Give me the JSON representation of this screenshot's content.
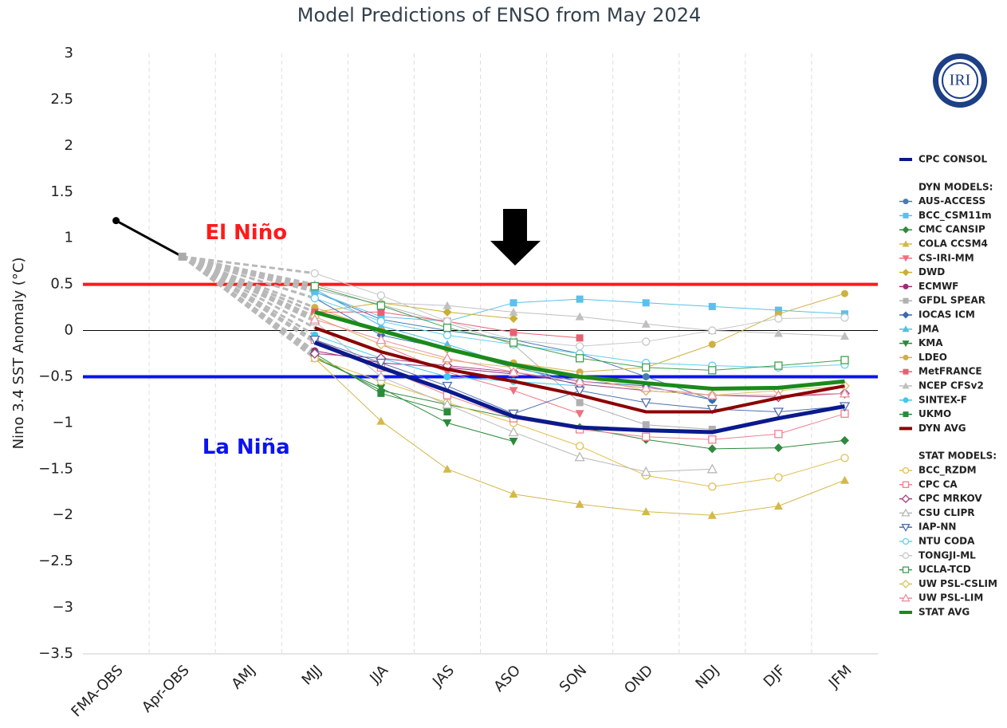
{
  "chart_data": {
    "type": "line",
    "title": "Model Predictions of ENSO from May 2024",
    "y_label": "Nino 3.4 SST Anomaly (°C)",
    "logo": "IRI",
    "categories": [
      "FMA-OBS",
      "Apr-OBS",
      "AMJ",
      "MJJ",
      "JJA",
      "JAS",
      "ASO",
      "SON",
      "OND",
      "NDJ",
      "DJF",
      "JFM"
    ],
    "ylim": [
      -3.5,
      3
    ],
    "yticks": [
      3,
      2.5,
      2,
      1.5,
      1,
      0.5,
      0,
      {
        "value": -0.5,
        "label": "−0.5"
      },
      {
        "value": -1,
        "label": "−1"
      },
      {
        "value": -1.5,
        "label": "−1.5"
      },
      {
        "value": -2,
        "label": "−2"
      },
      {
        "value": -2.5,
        "label": "−2.5"
      },
      {
        "value": -3,
        "label": "−3"
      },
      {
        "value": -3.5,
        "label": "−3.5"
      }
    ],
    "thresholds": [
      {
        "value": 0.5,
        "color": "#ff1a1a"
      },
      {
        "value": -0.5,
        "color": "#0a14f0"
      }
    ],
    "annotations": [
      {
        "text": "El Niño",
        "color": "#ff1a1a"
      },
      {
        "text": "La Niña",
        "color": "#0a14f0"
      }
    ],
    "observed": {
      "values": [
        1.19,
        0.8,
        null,
        null,
        null,
        null,
        null,
        null,
        null,
        null,
        null,
        null
      ],
      "color": "#000000"
    },
    "legend_headings": [
      "DYN MODELS:",
      "STAT MODELS:"
    ],
    "series": [
      {
        "name": "CPC CONSOL",
        "color": "#0a1a8c",
        "width": 5,
        "marker": "none",
        "filled": true,
        "legend_group": -1,
        "values": [
          null,
          null,
          null,
          -0.13,
          -0.4,
          -0.65,
          -0.93,
          -1.05,
          -1.08,
          -1.1,
          -0.95,
          -0.82
        ]
      },
      {
        "name": "AUS-ACCESS",
        "color": "#4a7ab0",
        "width": 1,
        "marker": "circle",
        "filled": true,
        "legend_group": 0,
        "values": [
          null,
          null,
          null,
          0.42,
          0.12,
          0.0,
          -0.1,
          -0.25,
          -0.5,
          -0.75,
          null,
          null
        ]
      },
      {
        "name": "BCC_CSM11m",
        "color": "#5bc0eb",
        "width": 1,
        "marker": "square",
        "filled": true,
        "legend_group": 0,
        "values": [
          null,
          null,
          null,
          0.42,
          0.15,
          0.1,
          0.3,
          0.34,
          0.3,
          0.26,
          0.22,
          0.18
        ]
      },
      {
        "name": "CMC CANSIP",
        "color": "#2e8b3e",
        "width": 1,
        "marker": "diamond",
        "filled": true,
        "legend_group": 0,
        "values": [
          null,
          null,
          null,
          -0.28,
          -0.65,
          -0.8,
          -0.95,
          -1.05,
          -1.18,
          -1.28,
          -1.27,
          -1.19
        ]
      },
      {
        "name": "COLA CCSM4",
        "color": "#d4b84a",
        "width": 1,
        "marker": "triangle",
        "filled": true,
        "legend_group": 0,
        "values": [
          null,
          null,
          null,
          -0.3,
          -0.98,
          -1.5,
          -1.77,
          -1.88,
          -1.96,
          -2.0,
          -1.9,
          -1.62
        ]
      },
      {
        "name": "CS-IRI-MM",
        "color": "#f07080",
        "width": 1,
        "marker": "triangle-down",
        "filled": true,
        "legend_group": 0,
        "values": [
          null,
          null,
          null,
          0.15,
          -0.15,
          -0.45,
          -0.65,
          -0.9,
          null,
          null,
          null,
          null
        ]
      },
      {
        "name": "DWD",
        "color": "#c9b030",
        "width": 1,
        "marker": "diamond",
        "filled": true,
        "legend_group": 0,
        "values": [
          null,
          null,
          null,
          0.2,
          0.3,
          0.2,
          0.13,
          null,
          null,
          null,
          null,
          null
        ]
      },
      {
        "name": "ECMWF",
        "color": "#9b2a7a",
        "width": 1,
        "marker": "circle",
        "filled": true,
        "legend_group": 0,
        "values": [
          null,
          null,
          null,
          -0.22,
          -0.35,
          -0.4,
          -0.47,
          null,
          null,
          null,
          null,
          null
        ]
      },
      {
        "name": "GFDL SPEAR",
        "color": "#b0b0b0",
        "width": 1,
        "marker": "square",
        "filled": true,
        "legend_group": 0,
        "values": [
          null,
          null,
          null,
          0.45,
          0.28,
          0.08,
          -0.15,
          -0.78,
          -1.02,
          -1.07,
          null,
          null
        ]
      },
      {
        "name": "IOCAS ICM",
        "color": "#3a6ab0",
        "width": 1,
        "marker": "diamond",
        "filled": true,
        "legend_group": 0,
        "values": [
          null,
          null,
          null,
          0.35,
          -0.05,
          -0.2,
          -0.4,
          -0.55,
          -0.6,
          -0.75,
          null,
          null
        ]
      },
      {
        "name": "JMA",
        "color": "#50c0e8",
        "width": 1,
        "marker": "triangle",
        "filled": true,
        "legend_group": 0,
        "values": [
          null,
          null,
          null,
          0.45,
          0.05,
          -0.15,
          -0.38,
          -0.6,
          null,
          null,
          null,
          null
        ]
      },
      {
        "name": "KMA",
        "color": "#2a8a3a",
        "width": 1,
        "marker": "triangle-down",
        "filled": true,
        "legend_group": 0,
        "values": [
          null,
          null,
          null,
          -0.3,
          -0.62,
          -1.0,
          -1.2,
          null,
          null,
          null,
          null,
          null
        ]
      },
      {
        "name": "LDEO",
        "color": "#d0b040",
        "width": 1,
        "marker": "circle",
        "filled": true,
        "legend_group": 0,
        "values": [
          null,
          null,
          null,
          0.25,
          0.0,
          -0.2,
          -0.35,
          -0.45,
          -0.4,
          -0.15,
          0.18,
          0.4
        ]
      },
      {
        "name": "MetFRANCE",
        "color": "#e86070",
        "width": 1,
        "marker": "square",
        "filled": true,
        "legend_group": 0,
        "values": [
          null,
          null,
          null,
          0.2,
          0.2,
          0.1,
          -0.02,
          -0.08,
          null,
          null,
          null,
          null
        ]
      },
      {
        "name": "NCEP CFSv2",
        "color": "#c0c0c0",
        "width": 1,
        "marker": "triangle",
        "filled": true,
        "legend_group": 0,
        "values": [
          null,
          null,
          null,
          0.5,
          0.3,
          0.27,
          0.2,
          0.15,
          0.07,
          0.0,
          -0.03,
          -0.06
        ]
      },
      {
        "name": "SINTEX-F",
        "color": "#40c8f0",
        "width": 1,
        "marker": "circle",
        "filled": true,
        "legend_group": 0,
        "values": [
          null,
          null,
          null,
          -0.05,
          -0.3,
          -0.5,
          -0.55,
          -0.6,
          null,
          null,
          null,
          null
        ]
      },
      {
        "name": "UKMO",
        "color": "#2a8a3a",
        "width": 1,
        "marker": "square",
        "filled": true,
        "legend_group": 0,
        "values": [
          null,
          null,
          null,
          -0.25,
          -0.68,
          -0.88,
          null,
          null,
          null,
          null,
          null,
          null
        ]
      },
      {
        "name": "DYN AVG",
        "color": "#8b0000",
        "width": 4,
        "marker": "none",
        "filled": true,
        "legend_group": 0,
        "values": [
          null,
          null,
          null,
          0.03,
          -0.23,
          -0.42,
          -0.55,
          -0.7,
          -0.88,
          -0.88,
          -0.73,
          -0.6
        ]
      },
      {
        "name": "BCC_RZDM",
        "color": "#e0c050",
        "width": 1,
        "marker": "circle",
        "filled": false,
        "legend_group": 1,
        "values": [
          null,
          null,
          null,
          -0.3,
          -0.55,
          -0.78,
          -1.0,
          -1.25,
          -1.57,
          -1.69,
          -1.59,
          -1.38
        ]
      },
      {
        "name": "CPC CA",
        "color": "#f08090",
        "width": 1,
        "marker": "square",
        "filled": false,
        "legend_group": 1,
        "values": [
          null,
          null,
          null,
          -0.1,
          -0.4,
          -0.7,
          -0.95,
          -1.07,
          -1.15,
          -1.18,
          -1.12,
          -0.9
        ]
      },
      {
        "name": "CPC MRKOV",
        "color": "#a04080",
        "width": 1,
        "marker": "diamond",
        "filled": false,
        "legend_group": 1,
        "values": [
          null,
          null,
          null,
          -0.25,
          -0.3,
          -0.38,
          -0.45,
          -0.58,
          -0.65,
          -0.7,
          -0.72,
          -0.68
        ]
      },
      {
        "name": "CSU CLIPR",
        "color": "#b8b8b8",
        "width": 1,
        "marker": "triangle",
        "filled": false,
        "legend_group": 1,
        "values": [
          null,
          null,
          null,
          0.1,
          -0.5,
          -0.8,
          -1.1,
          -1.37,
          -1.53,
          -1.5,
          null,
          null
        ]
      },
      {
        "name": "IAP-NN",
        "color": "#5070b0",
        "width": 1,
        "marker": "triangle-down",
        "filled": false,
        "legend_group": 1,
        "values": [
          null,
          null,
          null,
          -0.1,
          -0.35,
          -0.6,
          -0.9,
          -0.65,
          -0.78,
          -0.85,
          -0.88,
          -0.82
        ]
      },
      {
        "name": "NTU CODA",
        "color": "#60d0f0",
        "width": 1,
        "marker": "circle",
        "filled": false,
        "legend_group": 1,
        "values": [
          null,
          null,
          null,
          0.35,
          0.1,
          -0.05,
          -0.15,
          -0.25,
          -0.35,
          -0.38,
          -0.4,
          -0.37
        ]
      },
      {
        "name": "TONGJI-ML",
        "color": "#c8c8c8",
        "width": 1,
        "marker": "circle",
        "filled": false,
        "legend_group": 1,
        "values": [
          null,
          null,
          null,
          0.62,
          0.38,
          0.1,
          -0.1,
          -0.17,
          -0.12,
          0.0,
          0.13,
          0.14
        ]
      },
      {
        "name": "UCLA-TCD",
        "color": "#40a050",
        "width": 1,
        "marker": "square",
        "filled": false,
        "legend_group": 1,
        "values": [
          null,
          null,
          null,
          0.48,
          0.27,
          0.03,
          -0.13,
          -0.3,
          -0.4,
          -0.43,
          -0.38,
          -0.32
        ]
      },
      {
        "name": "UW PSL-CSLIM",
        "color": "#d8c060",
        "width": 1,
        "marker": "diamond",
        "filled": false,
        "legend_group": 1,
        "values": [
          null,
          null,
          null,
          0.15,
          -0.15,
          -0.32,
          -0.4,
          -0.5,
          -0.65,
          -0.7,
          -0.65,
          -0.6
        ]
      },
      {
        "name": "UW PSL-LIM",
        "color": "#f090a0",
        "width": 1,
        "marker": "triangle",
        "filled": false,
        "legend_group": 1,
        "values": [
          null,
          null,
          null,
          0.12,
          -0.1,
          -0.3,
          -0.45,
          -0.55,
          -0.62,
          -0.7,
          -0.7,
          -0.68
        ]
      },
      {
        "name": "STAT AVG",
        "color": "#1a8a1a",
        "width": 5,
        "marker": "none",
        "filled": true,
        "legend_group": 1,
        "values": [
          null,
          null,
          null,
          0.2,
          0.0,
          -0.2,
          -0.37,
          -0.5,
          -0.57,
          -0.63,
          -0.62,
          -0.55
        ]
      }
    ]
  }
}
